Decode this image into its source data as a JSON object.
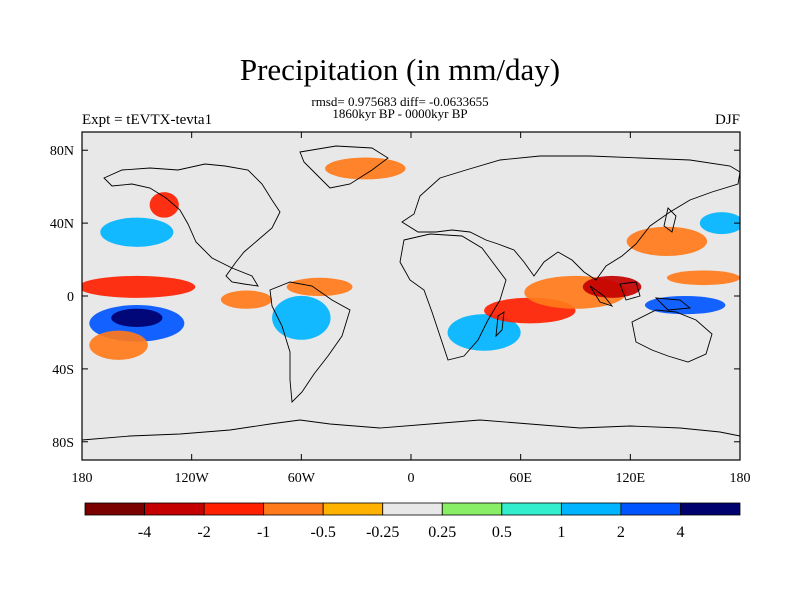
{
  "chart": {
    "title": "Precipitation (in mm/day)",
    "stats": "rmsd= 0.975683 diff= -0.0633655",
    "period": "1860kyr BP - 0000kyr BP",
    "left_label": "Expt = tEVTX-tevta1",
    "right_label": "DJF"
  },
  "chart_data": {
    "type": "heatmap",
    "variable": "precipitation difference",
    "units": "mm/day",
    "x_ticks": [
      "180",
      "120W",
      "60W",
      "0",
      "60E",
      "120E",
      "180"
    ],
    "x_tick_values": [
      -180,
      -120,
      -60,
      0,
      60,
      120,
      180
    ],
    "y_ticks": [
      "80N",
      "40N",
      "0",
      "40S",
      "80S"
    ],
    "y_tick_values": [
      80,
      40,
      0,
      -40,
      -80
    ],
    "xlim": [
      -180,
      180
    ],
    "ylim": [
      -90,
      90
    ],
    "colorbar": {
      "levels": [
        "-4",
        "-2",
        "-1",
        "-0.5",
        "-0.25",
        "0.25",
        "0.5",
        "1",
        "2",
        "4"
      ],
      "colors": [
        "#7a0000",
        "#c40000",
        "#ff2000",
        "#ff7a1a",
        "#ffb300",
        "#e8e8e8",
        "#88ee66",
        "#33eecc",
        "#00b4ff",
        "#0055ff",
        "#00006e"
      ]
    },
    "anomalies": [
      {
        "lon": -150,
        "lat": -15,
        "rx": 26,
        "ry": 10,
        "level": 2
      },
      {
        "lon": -150,
        "lat": -12,
        "rx": 14,
        "ry": 5,
        "level": 4
      },
      {
        "lon": -150,
        "lat": 5,
        "rx": 32,
        "ry": 6,
        "level": -2
      },
      {
        "lon": -160,
        "lat": -27,
        "rx": 16,
        "ry": 8,
        "level": -1
      },
      {
        "lon": -150,
        "lat": 35,
        "rx": 20,
        "ry": 8,
        "level": 1
      },
      {
        "lon": -135,
        "lat": 50,
        "rx": 8,
        "ry": 7,
        "level": -2
      },
      {
        "lon": -90,
        "lat": -2,
        "rx": 14,
        "ry": 5,
        "level": -1
      },
      {
        "lon": -60,
        "lat": -12,
        "rx": 16,
        "ry": 12,
        "level": 1
      },
      {
        "lon": -50,
        "lat": 5,
        "rx": 18,
        "ry": 5,
        "level": -1
      },
      {
        "lon": -25,
        "lat": 70,
        "rx": 22,
        "ry": 6,
        "level": -1
      },
      {
        "lon": 40,
        "lat": -20,
        "rx": 20,
        "ry": 10,
        "level": 1
      },
      {
        "lon": 65,
        "lat": -8,
        "rx": 25,
        "ry": 7,
        "level": -2
      },
      {
        "lon": 90,
        "lat": 2,
        "rx": 28,
        "ry": 9,
        "level": -1
      },
      {
        "lon": 110,
        "lat": 5,
        "rx": 16,
        "ry": 6,
        "level": -4
      },
      {
        "lon": 140,
        "lat": 30,
        "rx": 22,
        "ry": 8,
        "level": -1
      },
      {
        "lon": 150,
        "lat": -5,
        "rx": 22,
        "ry": 5,
        "level": 2
      },
      {
        "lon": 160,
        "lat": 10,
        "rx": 20,
        "ry": 4,
        "level": -1
      },
      {
        "lon": 170,
        "lat": 40,
        "rx": 12,
        "ry": 6,
        "level": 1
      }
    ]
  }
}
